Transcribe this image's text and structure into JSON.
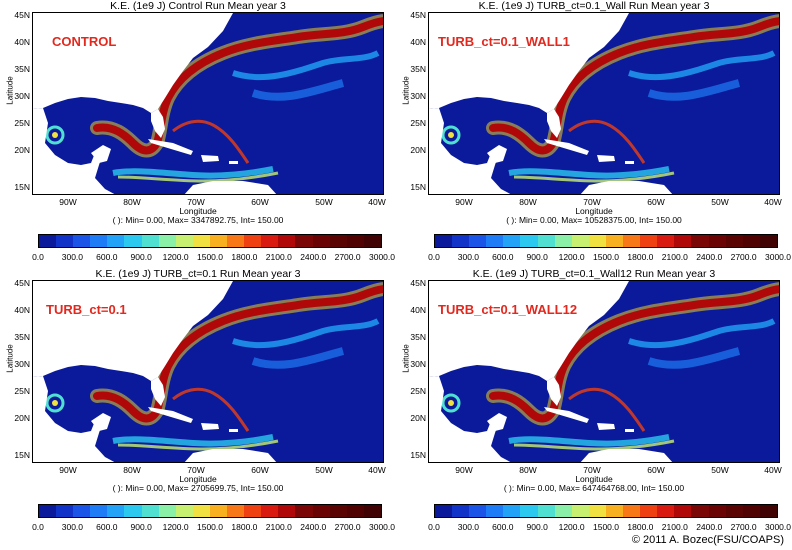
{
  "panels": [
    {
      "title": "K.E. (1e9 J) Control Run Mean year 3",
      "label": "CONTROL",
      "stats": "( ): Min= 0.00, Max= 3347892.75, Int= 150.00"
    },
    {
      "title": "K.E. (1e9 J) TURB_ct=0.1_Wall Run Mean year 3",
      "label": "TURB_ct=0.1_WALL1",
      "stats": "( ): Min= 0.00, Max= 10528375.00, Int= 150.00"
    },
    {
      "title": "K.E. (1e9 J) TURB_ct=0.1 Run Mean year 3",
      "label": "TURB_ct=0.1",
      "stats": "( ): Min= 0.00, Max= 2705699.75, Int= 150.00"
    },
    {
      "title": "K.E. (1e9 J) TURB_ct=0.1_Wall12 Run Mean year 3",
      "label": "TURB_ct=0.1_WALL12",
      "stats": "( ): Min= 0.00, Max= 647464768.00, Int= 150.00"
    }
  ],
  "axes": {
    "ylabel": "Latitude",
    "xlabel": "Longitude",
    "yticks": [
      "45N",
      "40N",
      "35N",
      "30N",
      "25N",
      "20N",
      "15N"
    ],
    "xticks": [
      "90W",
      "80W",
      "70W",
      "60W",
      "50W",
      "40W"
    ]
  },
  "colorbar": {
    "ticks": [
      "0.0",
      "300.0",
      "600.0",
      "900.0",
      "1200.0",
      "1500.0",
      "1800.0",
      "2100.0",
      "2400.0",
      "2700.0",
      "3000.0"
    ],
    "colors": [
      "#0a1a9a",
      "#1233c8",
      "#1a55e8",
      "#1e7cf6",
      "#22a3f8",
      "#2bc8f0",
      "#4fe0d2",
      "#8af0a8",
      "#c8f070",
      "#f0e040",
      "#f8b020",
      "#f87818",
      "#ee4010",
      "#d81a10",
      "#b00808",
      "#7a0606",
      "#6a0404",
      "#5a0303",
      "#500202",
      "#400202"
    ]
  },
  "copyright": "© 2011 A. Bozec(FSU/COAPS)"
}
